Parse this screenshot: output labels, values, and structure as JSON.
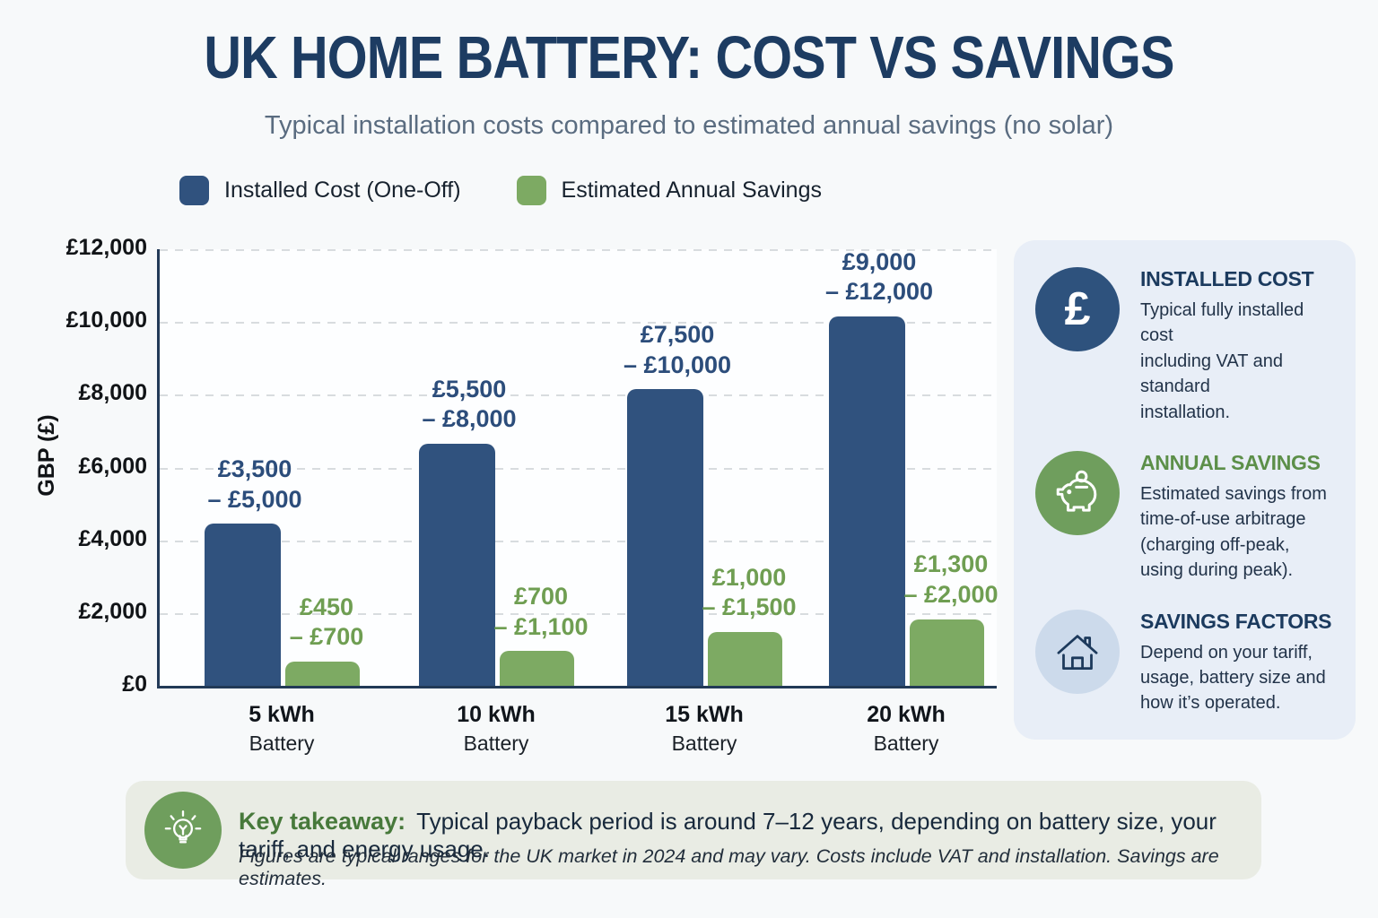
{
  "page": {
    "title": "UK HOME BATTERY: COST VS SAVINGS",
    "subtitle": "Typical installation costs compared to estimated annual savings (no solar)"
  },
  "legend": [
    {
      "label": "Installed Cost (One-Off)",
      "color": "#30527e"
    },
    {
      "label": "Estimated Annual Savings",
      "color": "#7daa63"
    }
  ],
  "chart_data": {
    "type": "bar",
    "title": "UK Home Battery: Cost vs Savings",
    "ylabel": "GBP (£)",
    "ylim": [
      0,
      12000
    ],
    "grid": "horizontal dashed",
    "legend_position": "top",
    "ytick_values": [
      12000,
      10000,
      8000,
      6000,
      4000,
      2000,
      0
    ],
    "ytick_labels": [
      "£12,000",
      "£10,000",
      "£8,000",
      "£6,000",
      "£4,000",
      "£2,000",
      "£0"
    ],
    "categories": [
      {
        "label": "5 kWh",
        "sub": "Battery"
      },
      {
        "label": "10 kWh",
        "sub": "Battery"
      },
      {
        "label": "15 kWh",
        "sub": "Battery"
      },
      {
        "label": "20 kWh",
        "sub": "Battery"
      }
    ],
    "series": [
      {
        "name": "Installed Cost (One-Off)",
        "color": "#30527e",
        "label_color": "#2c4d7b",
        "values": [
          4450,
          6650,
          8150,
          10150
        ],
        "range_labels": [
          "£3,500\n– £5,000",
          "£5,500\n– £8,000",
          "£7,500\n– £10,000",
          "£9,000\n– £12,000"
        ]
      },
      {
        "name": "Estimated Annual Savings",
        "color": "#7daa63",
        "label_color": "#6f9e52",
        "values": [
          660,
          950,
          1475,
          1825
        ],
        "range_labels": [
          "£450\n– £700",
          "£700\n– £1,100",
          "£1,000\n– £1,500",
          "£1,300\n– £2,000"
        ]
      }
    ]
  },
  "sidebar": {
    "cards": [
      {
        "icon": "pound-icon",
        "icon_bg": "#2e527d",
        "heading": "INSTALLED COST",
        "heading_color": "#1b3a5e",
        "body": "Typical fully installed cost\nincluding VAT and standard\ninstallation."
      },
      {
        "icon": "piggy-bank-icon",
        "icon_bg": "#6f9e5d",
        "heading": "ANNUAL SAVINGS",
        "heading_color": "#5c8f49",
        "body": "Estimated savings from\ntime-of-use arbitrage\n(charging off-peak,\nusing during peak)."
      },
      {
        "icon": "house-icon",
        "icon_bg": "#ccdaeb",
        "heading": "SAVINGS FACTORS",
        "heading_color": "#1b3a5e",
        "body": "Depend on your tariff,\nusage, battery size and\nhow it’s operated."
      }
    ]
  },
  "takeaway": {
    "label": "Key takeaway:",
    "text": "Typical payback period is around 7–12 years, depending on battery size, your tariff, and energy usage.",
    "footnote": "Figures are typical ranges for the UK market in 2024 and may vary. Costs include VAT and installation. Savings are estimates.",
    "pound_glyph": "£"
  }
}
